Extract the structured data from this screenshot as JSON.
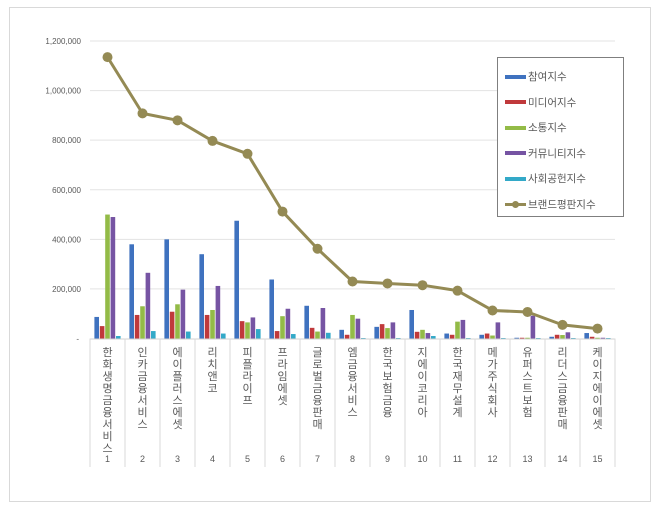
{
  "chart_data": {
    "type": "bar",
    "title": "",
    "xlabel": "",
    "ylabel": "",
    "ylim": [
      0,
      1200000
    ],
    "yticks": [
      0,
      200000,
      400000,
      600000,
      800000,
      1000000,
      1200000
    ],
    "ytick_labels": [
      "-",
      "200,000",
      "400,000",
      "600,000",
      "800,000",
      "1,000,000",
      "1,200,000"
    ],
    "grid": true,
    "legend_position": "upper right (inside)",
    "categories": [
      "한화생명금융서비스",
      "인카금융서비스",
      "에이플러스에셋",
      "리치앤코",
      "피플라이프",
      "프라임에셋",
      "글로벌금융판매",
      "엠금융서비스",
      "한국보험금융",
      "지에이코리아",
      "한국재무설계",
      "메가주식회사",
      "유퍼스트보험",
      "리더스금융판매",
      "케이지에이에셋"
    ],
    "category_numbers": [
      "1",
      "2",
      "3",
      "4",
      "5",
      "6",
      "7",
      "8",
      "9",
      "10",
      "11",
      "12",
      "13",
      "14",
      "15"
    ],
    "series": [
      {
        "name": "참여지수",
        "type": "bar",
        "color": "#3f72bf",
        "values": [
          87000,
          380000,
          400000,
          340000,
          475000,
          238000,
          132000,
          35000,
          47000,
          115000,
          20000,
          15000,
          3000,
          7000,
          22000
        ]
      },
      {
        "name": "미디어지수",
        "type": "bar",
        "color": "#c0393b",
        "values": [
          50000,
          95000,
          108000,
          95000,
          70000,
          30000,
          43000,
          15000,
          58000,
          27000,
          15000,
          20000,
          3000,
          15000,
          7000
        ]
      },
      {
        "name": "소통지수",
        "type": "bar",
        "color": "#93bb47",
        "values": [
          500000,
          130000,
          138000,
          115000,
          65000,
          90000,
          28000,
          95000,
          42000,
          35000,
          68000,
          12000,
          3000,
          14000,
          3000
        ]
      },
      {
        "name": "커뮤니티지수",
        "type": "bar",
        "color": "#7654a3",
        "values": [
          490000,
          265000,
          197000,
          212000,
          85000,
          120000,
          123000,
          80000,
          65000,
          22000,
          75000,
          65000,
          92000,
          25000,
          3000
        ]
      },
      {
        "name": "사회공헌지수",
        "type": "bar",
        "color": "#33a9c8",
        "values": [
          10000,
          30000,
          28000,
          20000,
          38000,
          18000,
          23000,
          2000,
          2000,
          10000,
          2000,
          2000,
          2000,
          2000,
          2000
        ]
      },
      {
        "name": "브랜드평판지수",
        "type": "line",
        "color": "#948a54",
        "values": [
          1135000,
          908000,
          880000,
          797000,
          745000,
          512000,
          362000,
          230000,
          222000,
          215000,
          193000,
          113000,
          107000,
          55000,
          40000
        ]
      }
    ]
  },
  "legend": {
    "items": [
      {
        "label": "참여지수",
        "color": "#3f72bf",
        "kind": "bar"
      },
      {
        "label": "미디어지수",
        "color": "#c0393b",
        "kind": "bar"
      },
      {
        "label": "소통지수",
        "color": "#93bb47",
        "kind": "bar"
      },
      {
        "label": "커뮤니티지수",
        "color": "#7654a3",
        "kind": "bar"
      },
      {
        "label": "사회공헌지수",
        "color": "#33a9c8",
        "kind": "bar"
      },
      {
        "label": "브랜드평판지수",
        "color": "#948a54",
        "kind": "line"
      }
    ]
  }
}
